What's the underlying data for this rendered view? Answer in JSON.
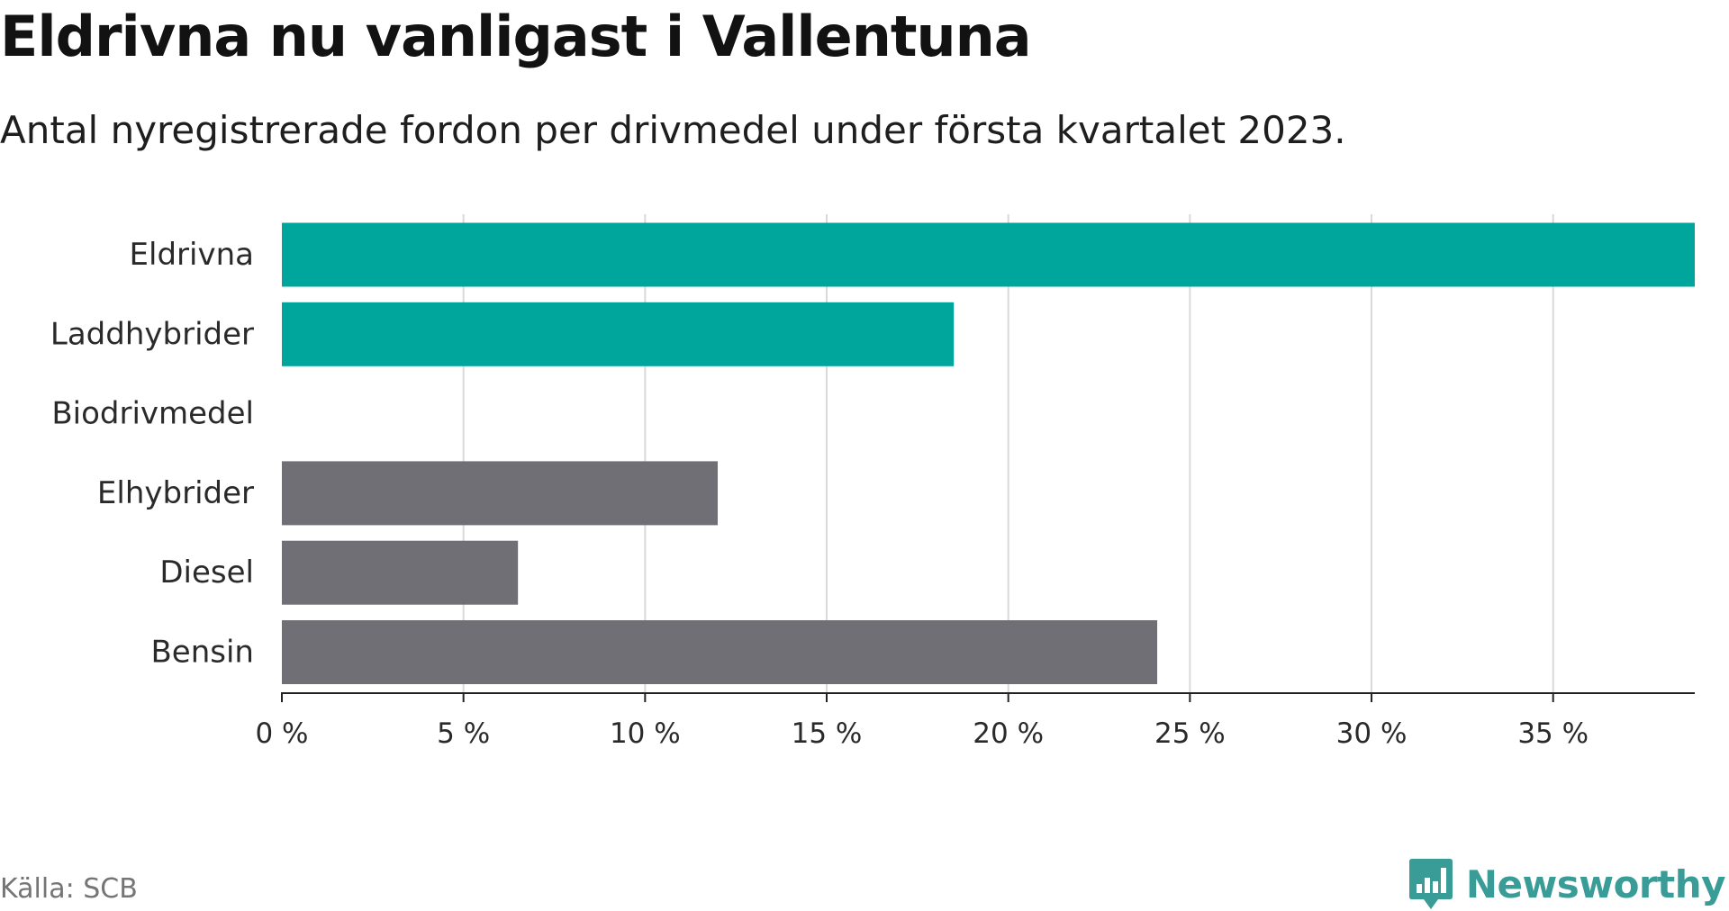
{
  "header": {
    "title": "Eldrivna nu vanligast i Vallentuna",
    "subtitle": "Antal nyregistrerade fordon per drivmedel under första kvartalet 2023."
  },
  "footer": {
    "source": "Källa: SCB",
    "brand": "Newsworthy",
    "brand_icon": "bar-chart-speech-bubble-icon"
  },
  "colors": {
    "highlight": "#00a59b",
    "default": "#706f76",
    "grid": "#d9d9d9",
    "axis": "#222222",
    "brand": "#3a9c96"
  },
  "chart_data": {
    "type": "bar",
    "orientation": "horizontal",
    "categories": [
      "Eldrivna",
      "Laddhybrider",
      "Biodrivmedel",
      "Elhybrider",
      "Diesel",
      "Bensin"
    ],
    "values": [
      38.9,
      18.5,
      0,
      12.0,
      6.5,
      24.1
    ],
    "highlight": [
      true,
      true,
      true,
      false,
      false,
      false
    ],
    "unit": "%",
    "xlim": [
      0,
      38.9
    ],
    "xticks": [
      0,
      5,
      10,
      15,
      20,
      25,
      30,
      35
    ],
    "xtick_labels": [
      "0 %",
      "5 %",
      "10 %",
      "15 %",
      "20 %",
      "25 %",
      "30 %",
      "35 %"
    ],
    "grid": true,
    "legend": "none"
  }
}
